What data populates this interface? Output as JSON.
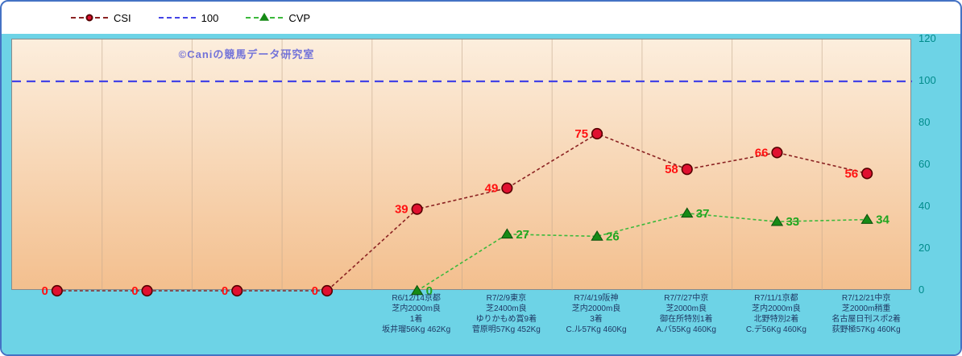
{
  "colors": {
    "frame_border": "#4472C4",
    "outer_background": "#FFFFFF",
    "chart_background": "#6DD3E6",
    "plot_gradient_top": "#FCEEDD",
    "plot_gradient_bottom": "#F3BF8E",
    "gridline": "#C4A98E",
    "watermark": "#7272D9",
    "y_tick": "#008B8B",
    "x_label": "#1F3864",
    "legend_text": "#000000"
  },
  "legend": {
    "items": [
      {
        "label": "CSI"
      },
      {
        "label": "100"
      },
      {
        "label": "CVP"
      }
    ]
  },
  "chart_data": {
    "type": "line",
    "watermark": "©Caniの競馬データ研究室",
    "ylim": [
      0,
      120
    ],
    "yticks": [
      0,
      20,
      40,
      60,
      80,
      100,
      120
    ],
    "legend_position": "top-left",
    "grid": "vertical-category-separators",
    "categories": [
      [],
      [],
      [],
      [],
      [
        "R6/12/14京都",
        "芝内2000m良",
        "1着",
        "坂井瑠56Kg 462Kg"
      ],
      [
        "R7/2/9東京",
        "芝2400m良",
        "ゆりかもめ賞9着",
        "菅原明57Kg 452Kg"
      ],
      [
        "R7/4/19阪神",
        "芝内2000m良",
        "3着",
        "C.ル57Kg 460Kg"
      ],
      [
        "R7/7/27中京",
        "芝2000m良",
        "御在所特別1着",
        "A.バ55Kg 460Kg"
      ],
      [
        "R7/11/1京都",
        "芝内2000m良",
        "北野特別2着",
        "C.デ56Kg 460Kg"
      ],
      [
        "R7/12/21中京",
        "芝2000m稍重",
        "名古屋日刊スポ2着",
        "荻野極57Kg 460Kg"
      ]
    ],
    "series": [
      {
        "name": "CSI",
        "marker": "circle",
        "line_style": "dashed",
        "line_color": "#8B2222",
        "marker_fill": "#E01030",
        "marker_stroke": "#550000",
        "label_color": "#FF1111",
        "values": [
          0,
          0,
          0,
          0,
          39,
          49,
          75,
          58,
          66,
          56
        ]
      },
      {
        "name": "100",
        "marker": "none",
        "line_style": "dashed",
        "full_width": true,
        "line_color": "#4343E6",
        "values": [
          100,
          100,
          100,
          100,
          100,
          100,
          100,
          100,
          100,
          100
        ]
      },
      {
        "name": "CVP",
        "marker": "triangle",
        "line_style": "dashed",
        "line_color": "#3CB93C",
        "marker_fill": "#168A16",
        "marker_stroke": "#0B4F0B",
        "label_color": "#1FA51F",
        "values": [
          null,
          null,
          null,
          null,
          0,
          27,
          26,
          37,
          33,
          34
        ]
      }
    ]
  }
}
